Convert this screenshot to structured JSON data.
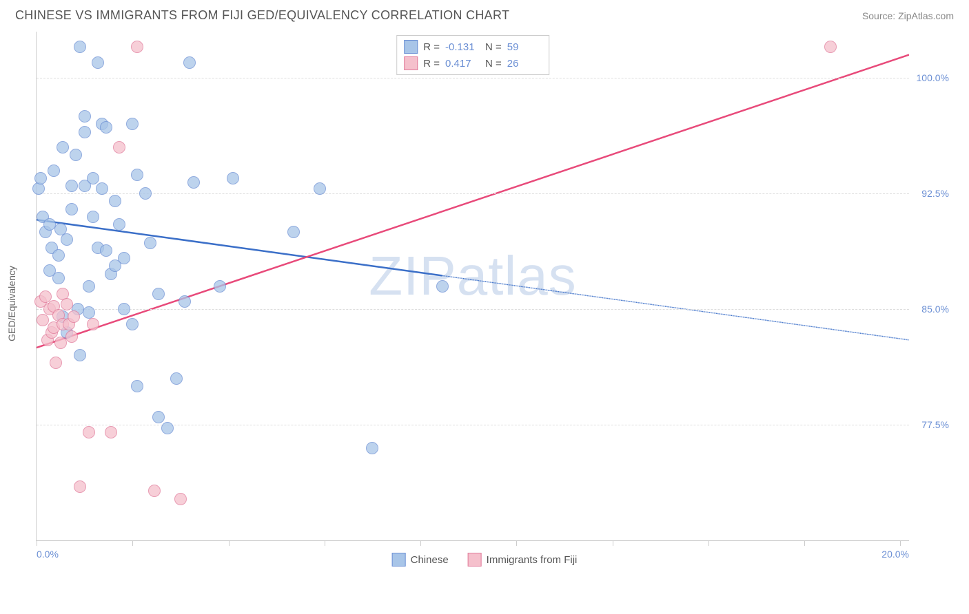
{
  "header": {
    "title": "CHINESE VS IMMIGRANTS FROM FIJI GED/EQUIVALENCY CORRELATION CHART",
    "source": "Source: ZipAtlas.com"
  },
  "chart": {
    "type": "scatter",
    "yaxis_label": "GED/Equivalency",
    "watermark": "ZIPatlas",
    "xlim": [
      0,
      20
    ],
    "ylim": [
      70,
      103
    ],
    "xticks": [
      0,
      2.2,
      4.4,
      6.6,
      8.8,
      11,
      13.2,
      15.4,
      17.6,
      19.8
    ],
    "xlabels": [
      {
        "x": 0,
        "text": "0.0%"
      },
      {
        "x": 20,
        "text": "20.0%"
      }
    ],
    "yticks": [
      {
        "y": 100,
        "label": "100.0%"
      },
      {
        "y": 92.5,
        "label": "92.5%"
      },
      {
        "y": 85,
        "label": "85.0%"
      },
      {
        "y": 77.5,
        "label": "77.5%"
      }
    ],
    "background_color": "#ffffff",
    "grid_color": "#dddddd",
    "axis_color": "#cccccc",
    "yaxis_label_color": "#6b8fd4",
    "xaxis_label_color": "#6b8fd4",
    "series": [
      {
        "name": "Chinese",
        "fill": "#a8c5e8",
        "stroke": "#6b8fd4",
        "line_color": "#3b6fc8",
        "line_width": 2.5,
        "trend": {
          "x1": 0,
          "y1": 90.8,
          "x2": 20,
          "y2": 83.0,
          "solid_until_x": 9.3
        },
        "points": [
          [
            0.05,
            92.8
          ],
          [
            0.1,
            93.5
          ],
          [
            0.15,
            91.0
          ],
          [
            0.2,
            90.0
          ],
          [
            0.3,
            90.5
          ],
          [
            0.3,
            87.5
          ],
          [
            0.35,
            89.0
          ],
          [
            0.4,
            94.0
          ],
          [
            0.5,
            87.0
          ],
          [
            0.5,
            88.5
          ],
          [
            0.55,
            90.2
          ],
          [
            0.6,
            95.5
          ],
          [
            0.6,
            84.5
          ],
          [
            0.7,
            83.5
          ],
          [
            0.7,
            89.5
          ],
          [
            0.8,
            93.0
          ],
          [
            0.8,
            91.5
          ],
          [
            0.9,
            95.0
          ],
          [
            0.95,
            85.0
          ],
          [
            1.0,
            102.0
          ],
          [
            1.0,
            82.0
          ],
          [
            1.1,
            97.5
          ],
          [
            1.1,
            96.5
          ],
          [
            1.1,
            93.0
          ],
          [
            1.2,
            84.8
          ],
          [
            1.2,
            86.5
          ],
          [
            1.3,
            93.5
          ],
          [
            1.3,
            91.0
          ],
          [
            1.4,
            101.0
          ],
          [
            1.4,
            89.0
          ],
          [
            1.5,
            92.8
          ],
          [
            1.5,
            97.0
          ],
          [
            1.6,
            96.8
          ],
          [
            1.6,
            88.8
          ],
          [
            1.7,
            87.3
          ],
          [
            1.8,
            87.8
          ],
          [
            1.8,
            92.0
          ],
          [
            1.9,
            90.5
          ],
          [
            2.0,
            85.0
          ],
          [
            2.0,
            88.3
          ],
          [
            2.2,
            97.0
          ],
          [
            2.2,
            84.0
          ],
          [
            2.3,
            93.7
          ],
          [
            2.3,
            80.0
          ],
          [
            2.5,
            92.5
          ],
          [
            2.6,
            89.3
          ],
          [
            2.8,
            86.0
          ],
          [
            2.8,
            78.0
          ],
          [
            3.0,
            77.3
          ],
          [
            3.2,
            80.5
          ],
          [
            3.4,
            85.5
          ],
          [
            3.5,
            101.0
          ],
          [
            3.6,
            93.2
          ],
          [
            4.2,
            86.5
          ],
          [
            4.5,
            93.5
          ],
          [
            5.9,
            90.0
          ],
          [
            6.5,
            92.8
          ],
          [
            7.7,
            76.0
          ],
          [
            9.3,
            86.5
          ]
        ]
      },
      {
        "name": "Immigrants from Fiji",
        "fill": "#f5c0cc",
        "stroke": "#e17a9a",
        "line_color": "#e84a7a",
        "line_width": 2.5,
        "trend": {
          "x1": 0,
          "y1": 82.5,
          "x2": 20,
          "y2": 101.5,
          "solid_until_x": 20
        },
        "points": [
          [
            0.1,
            85.5
          ],
          [
            0.15,
            84.3
          ],
          [
            0.2,
            85.8
          ],
          [
            0.25,
            83.0
          ],
          [
            0.3,
            85.0
          ],
          [
            0.35,
            83.5
          ],
          [
            0.4,
            83.8
          ],
          [
            0.4,
            85.2
          ],
          [
            0.45,
            81.5
          ],
          [
            0.5,
            84.6
          ],
          [
            0.55,
            82.8
          ],
          [
            0.6,
            86.0
          ],
          [
            0.6,
            84.0
          ],
          [
            0.7,
            85.3
          ],
          [
            0.75,
            84.0
          ],
          [
            0.8,
            83.2
          ],
          [
            0.85,
            84.5
          ],
          [
            1.0,
            73.5
          ],
          [
            1.2,
            77.0
          ],
          [
            1.3,
            84.0
          ],
          [
            1.7,
            77.0
          ],
          [
            1.9,
            95.5
          ],
          [
            2.3,
            102.0
          ],
          [
            2.7,
            73.2
          ],
          [
            3.3,
            72.7
          ],
          [
            18.2,
            102.0
          ]
        ]
      }
    ],
    "stats_box": {
      "rows": [
        {
          "swatch_fill": "#a8c5e8",
          "swatch_stroke": "#6b8fd4",
          "r_label": "R =",
          "r_value": "-0.131",
          "n_label": "N =",
          "n_value": "59"
        },
        {
          "swatch_fill": "#f5c0cc",
          "swatch_stroke": "#e17a9a",
          "r_label": "R =",
          "r_value": "0.417",
          "n_label": "N =",
          "n_value": "26"
        }
      ]
    },
    "legend": [
      {
        "swatch_fill": "#a8c5e8",
        "swatch_stroke": "#6b8fd4",
        "label": "Chinese"
      },
      {
        "swatch_fill": "#f5c0cc",
        "swatch_stroke": "#e17a9a",
        "label": "Immigrants from Fiji"
      }
    ]
  }
}
